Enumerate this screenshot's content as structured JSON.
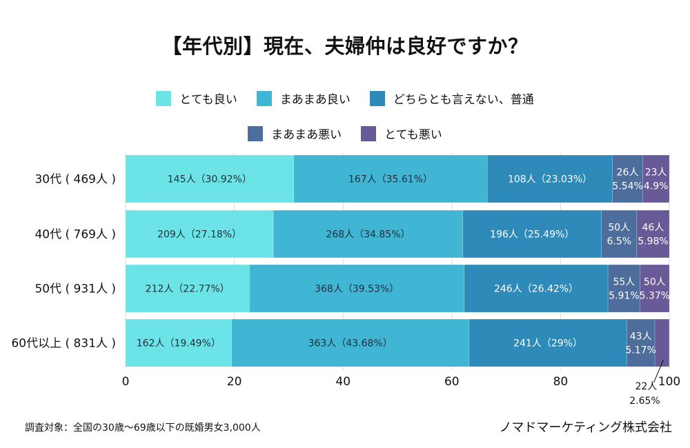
{
  "title_prefix": "【年代別】現在、",
  "title_highlight": "夫婦仲は良好",
  "title_suffix": "ですか？",
  "footer": {
    "survey_note": "調査対象：全国の30歳〜69歳以下の既婚男女3,000人",
    "company": "ノマドマーケティング株式会社"
  },
  "chart_data": {
    "type": "bar",
    "orientation": "horizontal",
    "stacked": true,
    "title": "【年代別】現在、夫婦仲は良好ですか？",
    "categories": [
      "30代（469人）",
      "40代（769人）",
      "50代（931人）",
      "60代以上（831人）"
    ],
    "category_labels": [
      "30代 ( 469人 )",
      "40代 ( 769人 )",
      "50代 ( 931人 )",
      "60代以上 ( 831人 )"
    ],
    "xlim": [
      0,
      100
    ],
    "xticks": [
      0,
      20,
      40,
      60,
      80,
      100
    ],
    "grid": true,
    "legend_position": "top",
    "series": [
      {
        "name": "とても良い",
        "color": "#6ce3e6",
        "label_color": "#1f2d3a",
        "counts": [
          145,
          209,
          212,
          162
        ],
        "values": [
          30.92,
          27.18,
          22.77,
          19.49
        ],
        "labels": [
          "145人（30.92%）",
          "209人（27.18%）",
          "212人（22.77%）",
          "162人（19.49%）"
        ]
      },
      {
        "name": "まあまあ良い",
        "color": "#41b6d4",
        "label_color": "#1f2d3a",
        "counts": [
          167,
          268,
          368,
          363
        ],
        "values": [
          35.61,
          34.85,
          39.53,
          43.68
        ],
        "labels": [
          "167人（35.61%）",
          "268人（34.85%）",
          "368人（39.53%）",
          "363人（43.68%）"
        ]
      },
      {
        "name": "どちらとも言えない、普通",
        "color": "#2e8ab8",
        "label_color": "#ffffff",
        "counts": [
          108,
          196,
          246,
          241
        ],
        "values": [
          23.03,
          25.49,
          26.42,
          29
        ],
        "labels": [
          "108人（23.03%）",
          "196人（25.49%）",
          "246人（26.42%）",
          "241人（29%）"
        ]
      },
      {
        "name": "まあまあ悪い",
        "color": "#4d6e9c",
        "label_color": "#ffffff",
        "counts": [
          26,
          50,
          55,
          43
        ],
        "values": [
          5.54,
          6.5,
          5.91,
          5.17
        ],
        "labels": [
          [
            "26人",
            "5.54%"
          ],
          [
            "50人",
            "6.5%"
          ],
          [
            "55人",
            "5.91%"
          ],
          [
            "43人",
            "5.17%"
          ]
        ]
      },
      {
        "name": "とても悪い",
        "color": "#675a97",
        "label_color": "#ffffff",
        "counts": [
          23,
          46,
          50,
          22
        ],
        "values": [
          4.9,
          5.98,
          5.37,
          2.65
        ],
        "labels": [
          [
            "23人",
            "4.9%"
          ],
          [
            "46人",
            "5.98%"
          ],
          [
            "50人",
            "5.37%"
          ],
          [
            "22人",
            "2.65%"
          ]
        ],
        "callout_rows": [
          3
        ]
      }
    ]
  }
}
